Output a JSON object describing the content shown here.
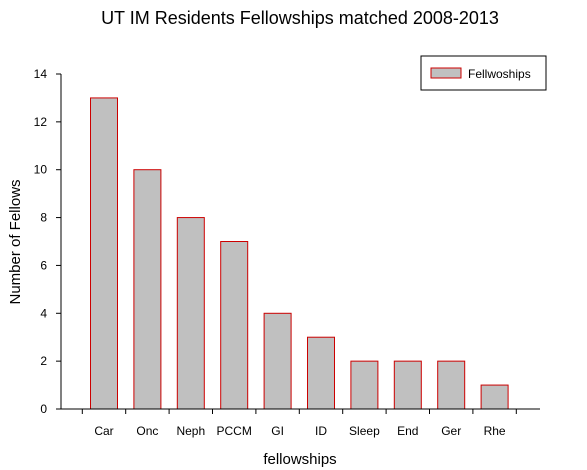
{
  "chart_data": {
    "type": "bar",
    "title": "UT IM Residents Fellowships matched 2008-2013",
    "xlabel": "fellowships",
    "ylabel": "Number of Fellows",
    "categories": [
      "Car",
      "Onc",
      "Neph",
      "PCCM",
      "GI",
      "ID",
      "Sleep",
      "End",
      "Ger",
      "Rhe"
    ],
    "series": [
      {
        "name": "Fellwoships",
        "values": [
          13,
          10,
          8,
          7,
          4,
          3,
          2,
          2,
          2,
          1
        ]
      }
    ],
    "ylim": [
      0,
      14
    ],
    "yticks": [
      0,
      2,
      4,
      6,
      8,
      10,
      12,
      14
    ],
    "grid": false,
    "legend_position": "top-right",
    "colors": {
      "bar_fill": "#c0c0c0",
      "bar_stroke": "#cc0000",
      "axis": "#000000"
    }
  }
}
